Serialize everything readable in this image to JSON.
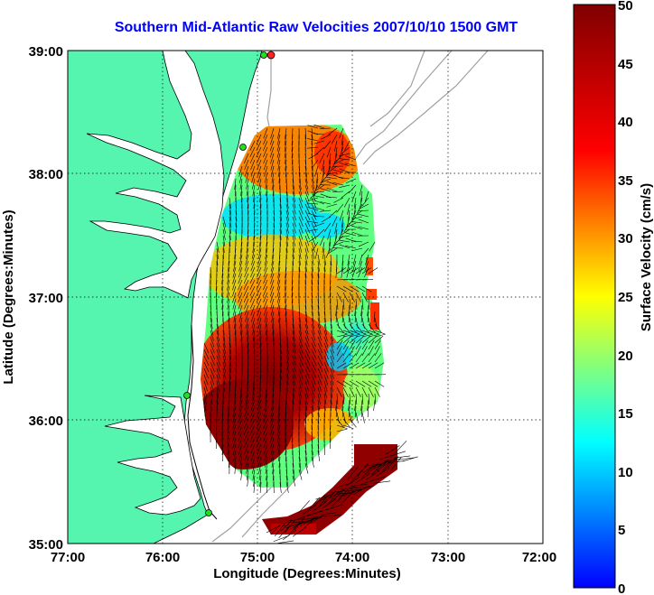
{
  "title": "Southern Mid-Atlantic Raw Velocities 2007/10/10 1500 GMT",
  "xlabel": "Longitude (Degrees:Minutes)",
  "ylabel": "Latitude (Degrees:Minutes)",
  "x_ticks": [
    "77:00",
    "76:00",
    "75:00",
    "74:00",
    "73:00",
    "72:00"
  ],
  "y_ticks": [
    "39:00",
    "38:00",
    "37:00",
    "36:00",
    "35:00"
  ],
  "colorbar": {
    "label": "Surface Velocity (cm/s)",
    "ticks": [
      "50",
      "45",
      "40",
      "35",
      "30",
      "25",
      "20",
      "15",
      "10",
      "5",
      "0"
    ],
    "min": 0,
    "max": 50,
    "colormap": "jet"
  },
  "colors": {
    "land": "#55f5b0",
    "water": "#ffffff",
    "bathymetry_contour": "#a0a0a0",
    "grid": "#000000",
    "title": "#0000ff",
    "site_marker": "#22dd22",
    "site_marker_red": "#ff2222"
  },
  "map": {
    "lon_range": [
      -77,
      -72
    ],
    "lat_range": [
      35,
      39
    ],
    "site_markers": [
      {
        "lon": -74.85,
        "lat": 38.92,
        "color": "red"
      },
      {
        "lon": -75.08,
        "lat": 38.2,
        "color": "green"
      },
      {
        "lon": -75.7,
        "lat": 36.2,
        "color": "green"
      },
      {
        "lon": -75.48,
        "lat": 35.25,
        "color": "green"
      }
    ]
  }
}
